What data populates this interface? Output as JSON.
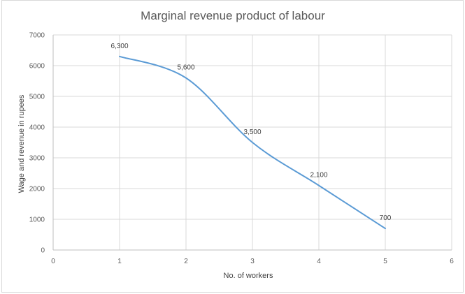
{
  "chart_data": {
    "type": "scatter",
    "title": "Marginal revenue product of labour",
    "xlabel": "No. of workers",
    "ylabel": "Wage and revenue in rupees",
    "xlim": [
      0,
      6
    ],
    "ylim": [
      0,
      7000
    ],
    "x_ticks": [
      0,
      1,
      2,
      3,
      4,
      5,
      6
    ],
    "y_ticks": [
      0,
      1000,
      2000,
      3000,
      4000,
      5000,
      6000,
      7000
    ],
    "grid": true,
    "legend": "none",
    "line_style": "smoothed",
    "series": [
      {
        "x": [
          1,
          2,
          3,
          4,
          5
        ],
        "values": [
          6300,
          5600,
          3500,
          2100,
          700
        ],
        "data_labels": [
          "6,300",
          "5,600",
          "3,500",
          "2,100",
          "700"
        ],
        "color": "#5b9bd5"
      }
    ]
  }
}
